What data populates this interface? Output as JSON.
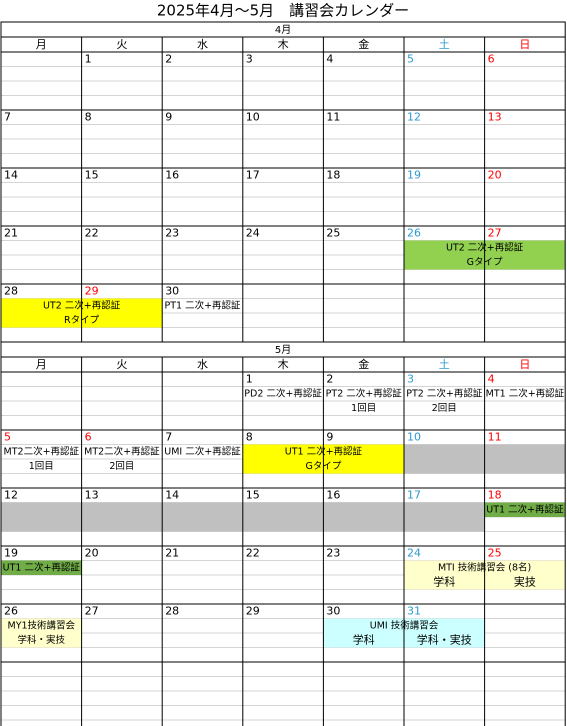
{
  "title": "2025年4月～5月　講習会カレンダー",
  "colors": {
    "saturday": "#2e9ad0",
    "sunday": "#ff0000"
  },
  "months": [
    {
      "label": "4月",
      "weekdays": [
        "月",
        "火",
        "水",
        "木",
        "金",
        "土",
        "日"
      ],
      "weeks": [
        [
          null,
          {
            "day": 1
          },
          {
            "day": 2
          },
          {
            "day": 3
          },
          {
            "day": 4
          },
          {
            "day": 5
          },
          {
            "day": 6
          }
        ],
        [
          {
            "day": 7
          },
          {
            "day": 8
          },
          {
            "day": 9
          },
          {
            "day": 10
          },
          {
            "day": 11
          },
          {
            "day": 12
          },
          {
            "day": 13
          }
        ],
        [
          {
            "day": 14
          },
          {
            "day": 15
          },
          {
            "day": 16
          },
          {
            "day": 17
          },
          {
            "day": 18
          },
          {
            "day": 19
          },
          {
            "day": 20
          }
        ],
        [
          {
            "day": 21
          },
          {
            "day": 22
          },
          {
            "day": 23
          },
          {
            "day": 24
          },
          {
            "day": 25
          },
          {
            "day": 26,
            "events": [
              {
                "lines": [
                  "UT2 二次+再認証",
                  "Gタイプ"
                ],
                "span": 2,
                "color": "#92d050"
              }
            ]
          },
          {
            "day": 27
          }
        ],
        [
          {
            "day": 28,
            "events": [
              {
                "lines": [
                  "UT2 二次+再認証",
                  "Rタイプ"
                ],
                "span": 2,
                "color": "#ffff00"
              }
            ]
          },
          {
            "day": 29,
            "holiday": true
          },
          {
            "day": 30,
            "events": [
              {
                "lines": [
                  "PT1 二次+再認証"
                ]
              }
            ]
          },
          null,
          null,
          null,
          null
        ]
      ]
    },
    {
      "label": "5月",
      "weekdays": [
        "月",
        "火",
        "水",
        "木",
        "金",
        "土",
        "日"
      ],
      "weeks": [
        [
          null,
          null,
          null,
          {
            "day": 1,
            "events": [
              {
                "lines": [
                  "PD2 二次+再認証"
                ]
              }
            ]
          },
          {
            "day": 2,
            "events": [
              {
                "lines": [
                  "PT2 二次+再認証",
                  "1回目"
                ]
              }
            ]
          },
          {
            "day": 3,
            "events": [
              {
                "lines": [
                  "PT2 二次+再認証",
                  "2回目"
                ]
              }
            ]
          },
          {
            "day": 4,
            "events": [
              {
                "lines": [
                  "MT1 二次+再認証"
                ]
              }
            ]
          }
        ],
        [
          {
            "day": 5,
            "holiday": true,
            "events": [
              {
                "lines": [
                  "MT2二次+再認証",
                  "1回目"
                ]
              }
            ]
          },
          {
            "day": 6,
            "holiday": true,
            "events": [
              {
                "lines": [
                  "MT2二次+再認証",
                  "2回目"
                ]
              }
            ]
          },
          {
            "day": 7,
            "events": [
              {
                "lines": [
                  "UMI 二次+再認証"
                ]
              }
            ]
          },
          {
            "day": 8,
            "events": [
              {
                "lines": [
                  "UT1 二次+再認証",
                  "Gタイプ"
                ],
                "span": 2,
                "color": "#ffff00"
              }
            ]
          },
          {
            "day": 9
          },
          {
            "day": 10,
            "events": [
              {
                "lines": [],
                "span": 2,
                "color": "#c0c0c0"
              }
            ]
          },
          {
            "day": 11
          }
        ],
        [
          {
            "day": 12,
            "events": [
              {
                "lines": [],
                "span": 6,
                "color": "#c0c0c0"
              }
            ]
          },
          {
            "day": 13
          },
          {
            "day": 14
          },
          {
            "day": 15
          },
          {
            "day": 16
          },
          {
            "day": 17
          },
          {
            "day": 18,
            "events": [
              {
                "lines": [
                  "UT1 二次+再認証"
                ],
                "color": "#70ad47"
              }
            ]
          }
        ],
        [
          {
            "day": 19,
            "events": [
              {
                "lines": [
                  "UT1 二次+再認証"
                ],
                "color": "#70ad47"
              }
            ]
          },
          {
            "day": 20
          },
          {
            "day": 21
          },
          {
            "day": 22
          },
          {
            "day": 23
          },
          {
            "day": 24,
            "events": [
              {
                "lines": [
                  "MTI 技術講習会 (8名)"
                ],
                "notes": [
                  "学科",
                  "実技"
                ],
                "span": 2,
                "color": "#ffffcc"
              }
            ]
          },
          {
            "day": 25
          }
        ],
        [
          {
            "day": 26,
            "events": [
              {
                "lines": [
                  "MY1技術講習会",
                  "学科・実技"
                ],
                "color": "#ffffcc"
              }
            ]
          },
          {
            "day": 27
          },
          {
            "day": 28
          },
          {
            "day": 29
          },
          {
            "day": 30,
            "events": [
              {
                "lines": [
                  "UMI 技術講習会"
                ],
                "notes": [
                  "学科",
                  "学科・実技"
                ],
                "span": 2,
                "color": "#ccffff"
              }
            ]
          },
          {
            "day": 31
          },
          null
        ]
      ]
    }
  ]
}
